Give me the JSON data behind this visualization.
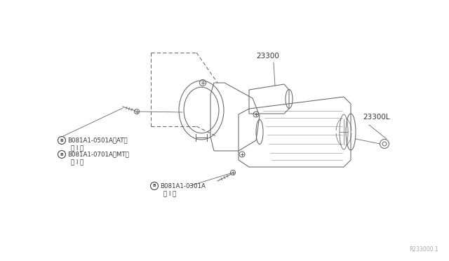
{
  "bg_color": "#ffffff",
  "line_color": "#666666",
  "text_color": "#333333",
  "fig_width": 6.4,
  "fig_height": 3.72,
  "dpi": 100,
  "watermark": "R233000.1",
  "label_23300": "23300",
  "label_23300L": "23300L",
  "label_b1_l1": "B081A1-0501A〈AT〉",
  "label_b1_l2": "（ I ）",
  "label_b2_l1": "B081A1-0701A〈MT〉",
  "label_b2_l2": "（ I ）",
  "label_b3_l1": "B081A1-0301A",
  "label_b3_l2": "（ I ）"
}
